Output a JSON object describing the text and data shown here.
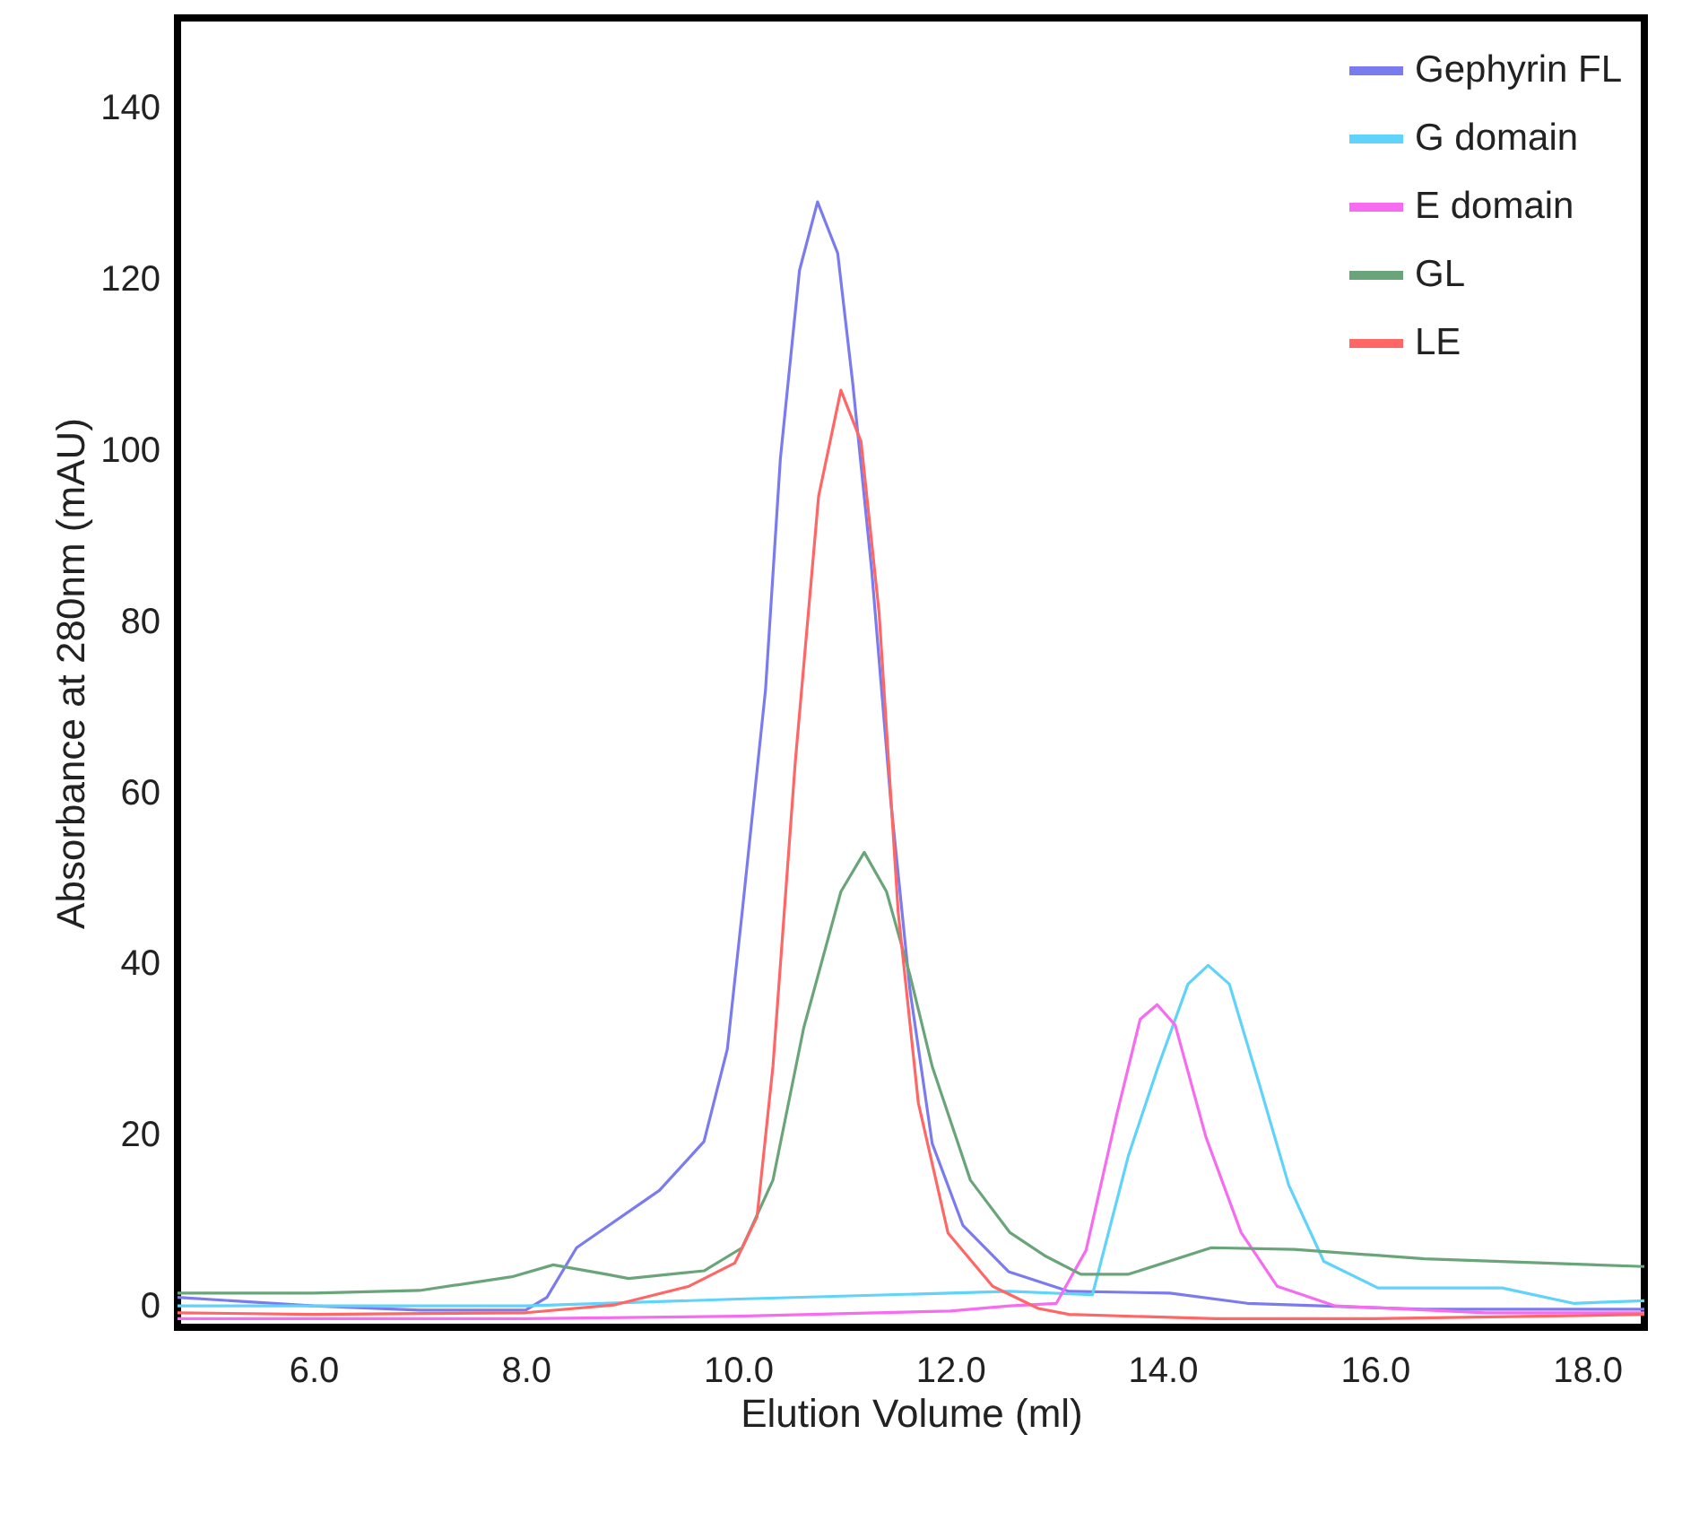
{
  "chart_data": {
    "type": "line",
    "xlabel": "Elution Volume (ml)",
    "ylabel": "Absorbance at 280nm (mAU)",
    "xlim": [
      4.72,
      18.54
    ],
    "ylim": [
      -2.5,
      150.5
    ],
    "xticks": [
      {
        "value": 6,
        "label": "6.0"
      },
      {
        "value": 8,
        "label": "8.0"
      },
      {
        "value": 10,
        "label": "10.0"
      },
      {
        "value": 12,
        "label": "12.0"
      },
      {
        "value": 14,
        "label": "14.0"
      },
      {
        "value": 16,
        "label": "16.0"
      },
      {
        "value": 18,
        "label": "18.0"
      }
    ],
    "yticks": [
      0,
      20,
      40,
      60,
      80,
      100,
      120,
      140
    ],
    "grid": false,
    "legend": "top right",
    "marker": "none",
    "line_style": "solid",
    "series": [
      {
        "name": "Gephyrin FL",
        "color": "#7b7bf0",
        "x": [
          4.72,
          6.0,
          7.0,
          8.0,
          8.2,
          8.48,
          9.26,
          9.68,
          9.9,
          10.04,
          10.26,
          10.4,
          10.58,
          10.75,
          10.94,
          11.08,
          11.26,
          11.44,
          11.62,
          11.83,
          12.12,
          12.55,
          13.12,
          14.07,
          14.8,
          16.46,
          18.54
        ],
        "values": [
          1,
          0,
          -0.5,
          -0.5,
          1,
          6.8,
          13.5,
          19.2,
          30,
          46,
          72,
          99,
          121,
          129,
          123,
          108,
          86,
          59,
          37,
          19,
          9.4,
          4,
          1.7,
          1.5,
          0.3,
          -0.4,
          -0.4
        ]
      },
      {
        "name": "G domain",
        "color": "#5fd3fa",
        "x": [
          4.72,
          6.0,
          8.0,
          10.0,
          12.0,
          12.56,
          13.34,
          13.68,
          13.96,
          14.24,
          14.43,
          14.63,
          14.91,
          15.19,
          15.52,
          16.03,
          17.2,
          17.87,
          18.54
        ],
        "values": [
          0,
          0,
          0,
          0.8,
          1.5,
          1.7,
          1.3,
          17.6,
          28,
          37.6,
          39.8,
          37.6,
          26,
          14.1,
          5.2,
          2.1,
          2.1,
          0.3,
          0.6
        ]
      },
      {
        "name": "E domain",
        "color": "#f76bf0",
        "x": [
          4.72,
          6.0,
          8.0,
          10.0,
          12.0,
          12.56,
          13.0,
          13.28,
          13.57,
          13.79,
          13.95,
          14.12,
          14.41,
          14.74,
          15.08,
          15.63,
          17.04,
          18.54
        ],
        "values": [
          -1.5,
          -1.5,
          -1.5,
          -1.2,
          -0.6,
          0,
          0.3,
          6.5,
          22.4,
          33.5,
          35.2,
          32.8,
          19.7,
          8.6,
          2.3,
          0,
          -0.8,
          -0.8
        ]
      },
      {
        "name": "GL",
        "color": "#6aa57a",
        "x": [
          4.72,
          6.0,
          7.0,
          7.87,
          8.26,
          8.76,
          8.97,
          9.68,
          10.04,
          10.33,
          10.62,
          10.97,
          11.19,
          11.4,
          11.62,
          11.83,
          12.19,
          12.56,
          12.9,
          13.23,
          13.68,
          14.46,
          15.24,
          16.47,
          18.54
        ],
        "values": [
          1.5,
          1.5,
          1.8,
          3.4,
          4.8,
          3.7,
          3.2,
          4.1,
          6.8,
          14.7,
          32.5,
          48.4,
          53,
          48.4,
          38.7,
          28,
          14.7,
          8.6,
          5.8,
          3.7,
          3.7,
          6.8,
          6.6,
          5.5,
          4.6
        ]
      },
      {
        "name": "LE",
        "color": "#ff6666",
        "x": [
          4.72,
          6.0,
          8.0,
          8.83,
          9.54,
          9.97,
          10.18,
          10.33,
          10.54,
          10.76,
          10.97,
          11.16,
          11.33,
          11.51,
          11.7,
          11.98,
          12.4,
          12.83,
          13.12,
          14.5,
          16.0,
          18.54
        ],
        "values": [
          -0.8,
          -1,
          -0.8,
          0.1,
          2.3,
          5,
          10.4,
          28,
          63.5,
          94.6,
          107,
          101,
          81,
          46,
          23.7,
          8.5,
          2.3,
          -0.3,
          -1,
          -1.5,
          -1.5,
          -1
        ]
      }
    ]
  }
}
